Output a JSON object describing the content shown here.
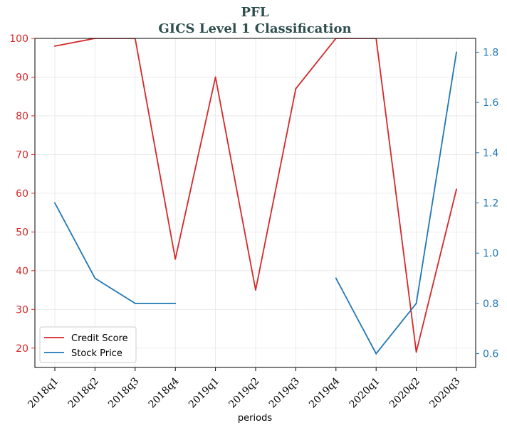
{
  "chart_data": {
    "type": "line",
    "title": "PFL",
    "subtitle": "GICS Level 1 Classification",
    "xlabel": "periods",
    "ylabel": "",
    "y2label": "",
    "categories": [
      "2018q1",
      "2018q2",
      "2018q3",
      "2018q4",
      "2019q1",
      "2019q2",
      "2019q3",
      "2019q4",
      "2020q1",
      "2020q2",
      "2020q3"
    ],
    "ylim": [
      15,
      100
    ],
    "y_ticks": [
      20,
      30,
      40,
      50,
      60,
      70,
      80,
      90,
      100
    ],
    "y2lim": [
      0.545,
      1.855
    ],
    "y2_ticks": [
      0.6,
      0.8,
      1.0,
      1.2,
      1.4,
      1.6,
      1.8
    ],
    "grid": true,
    "legend_position": "lower-left",
    "series": [
      {
        "name": "Credit Score",
        "axis": "left",
        "color": "#d62728",
        "values": [
          98,
          100,
          100,
          43,
          90,
          35,
          87,
          100,
          100,
          19,
          61
        ]
      },
      {
        "name": "Stock Price",
        "axis": "right",
        "color": "#1f77b4",
        "values": [
          1.2,
          0.9,
          0.8,
          0.8,
          null,
          null,
          null,
          0.9,
          0.6,
          0.8,
          1.8
        ]
      }
    ]
  }
}
